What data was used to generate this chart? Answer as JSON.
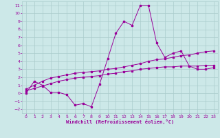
{
  "xlabel": "Windchill (Refroidissement éolien,°C)",
  "background_color": "#cce8e8",
  "grid_color": "#aacccc",
  "line_color": "#990099",
  "xlim": [
    -0.5,
    23.5
  ],
  "ylim": [
    -2.5,
    11.5
  ],
  "xticks": [
    0,
    1,
    2,
    3,
    4,
    5,
    6,
    7,
    8,
    9,
    10,
    11,
    12,
    13,
    14,
    15,
    16,
    17,
    18,
    19,
    20,
    21,
    22,
    23
  ],
  "yticks": [
    -2,
    -1,
    0,
    1,
    2,
    3,
    4,
    5,
    6,
    7,
    8,
    9,
    10,
    11
  ],
  "line1_x": [
    0,
    1,
    2,
    3,
    4,
    5,
    6,
    7,
    8,
    9,
    10,
    11,
    12,
    13,
    14,
    15,
    16,
    17,
    18,
    19,
    20,
    21,
    22,
    23
  ],
  "line1_y": [
    0.0,
    1.5,
    1.0,
    0.1,
    0.1,
    -0.2,
    -1.5,
    -1.3,
    -1.7,
    1.1,
    4.3,
    7.5,
    9.0,
    8.5,
    11.0,
    11.0,
    6.3,
    4.5,
    5.0,
    5.3,
    3.4,
    3.0,
    3.0,
    3.2
  ],
  "line2_x": [
    0,
    1,
    2,
    3,
    4,
    5,
    6,
    7,
    8,
    9,
    10,
    11,
    12,
    13,
    14,
    15,
    16,
    17,
    18,
    19,
    20,
    21,
    22,
    23
  ],
  "line2_y": [
    0.3,
    0.6,
    0.9,
    1.2,
    1.5,
    1.7,
    1.9,
    2.0,
    2.1,
    2.2,
    2.4,
    2.5,
    2.7,
    2.8,
    3.0,
    3.1,
    3.2,
    3.3,
    3.3,
    3.4,
    3.4,
    3.4,
    3.5,
    3.5
  ],
  "line3_x": [
    0,
    1,
    2,
    3,
    4,
    5,
    6,
    7,
    8,
    9,
    10,
    11,
    12,
    13,
    14,
    15,
    16,
    17,
    18,
    19,
    20,
    21,
    22,
    23
  ],
  "line3_y": [
    0.5,
    1.0,
    1.5,
    1.9,
    2.1,
    2.3,
    2.5,
    2.6,
    2.7,
    2.8,
    3.0,
    3.1,
    3.3,
    3.5,
    3.7,
    4.0,
    4.2,
    4.3,
    4.5,
    4.7,
    4.8,
    5.0,
    5.2,
    5.3
  ]
}
